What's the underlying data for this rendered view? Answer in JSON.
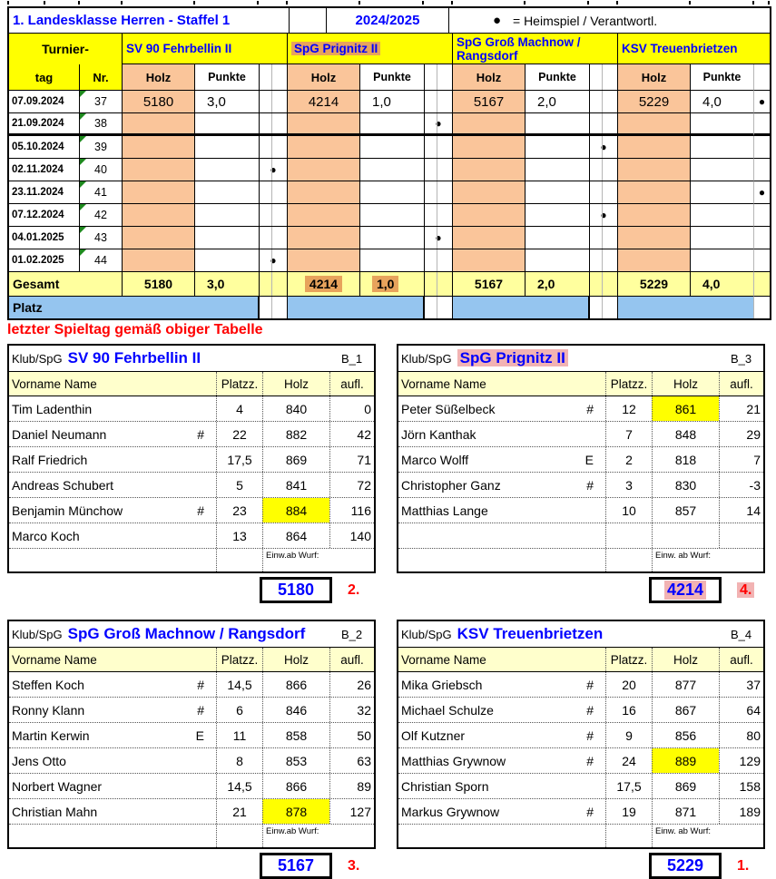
{
  "colors": {
    "header_yellow": "#FFFF00",
    "holz_peach": "#FAC59A",
    "total_row_yellow": "#FFFF9E",
    "platz_blue": "#95C5EF",
    "orange_highlight": "#E7A35C",
    "pink_highlight": "#F2B3B3",
    "subheader_cream": "#FFFFCC",
    "text_blue": "#0000FF",
    "text_red": "#FF0000",
    "comment_triangle_green": "#1E8A1E",
    "cell_yellow_highlight": "#FFFF00"
  },
  "header": {
    "title": "1. Landesklasse Herren - Staffel 1",
    "season": "2024/2025"
  },
  "legend": {
    "symbol": "●",
    "text": "= Heimspiel / Verantwortl."
  },
  "standings": {
    "corner_line1": "Turnier-",
    "corner_tag": "tag",
    "corner_nr": "Nr.",
    "col_holz": "Holz",
    "col_punkte": "Punkte",
    "teams": [
      {
        "name": "SV 90 Fehrbellin II",
        "highlight": null
      },
      {
        "name": "SpG Prignitz II",
        "highlight": "orange"
      },
      {
        "name": "SpG Groß Machnow / Rangsdorf",
        "highlight": null
      },
      {
        "name": "KSV Treuenbrietzen",
        "highlight": null
      }
    ],
    "rows": [
      {
        "date": "07.09.2024",
        "nr": "37",
        "dot": "end",
        "thick": false,
        "values": [
          [
            "5180",
            "3,0"
          ],
          [
            "4214",
            "1,0"
          ],
          [
            "5167",
            "2,0"
          ],
          [
            "5229",
            "4,0"
          ]
        ]
      },
      {
        "date": "21.09.2024",
        "nr": "38",
        "dot": "sp2",
        "thick": true,
        "values": null
      },
      {
        "date": "05.10.2024",
        "nr": "39",
        "dot": "sp3",
        "thick": false,
        "values": null
      },
      {
        "date": "02.11.2024",
        "nr": "40",
        "dot": "sp1",
        "thick": false,
        "values": null
      },
      {
        "date": "23.11.2024",
        "nr": "41",
        "dot": "end",
        "thick": false,
        "values": null
      },
      {
        "date": "07.12.2024",
        "nr": "42",
        "dot": "sp3",
        "thick": false,
        "values": null
      },
      {
        "date": "04.01.2025",
        "nr": "43",
        "dot": "sp2",
        "thick": false,
        "values": null
      },
      {
        "date": "01.02.2025",
        "nr": "44",
        "dot": "sp1",
        "thick": false,
        "values": null
      }
    ],
    "gesamt": {
      "label": "Gesamt",
      "values": [
        [
          "5180",
          "3,0",
          false
        ],
        [
          "4214",
          "1,0",
          true
        ],
        [
          "5167",
          "2,0",
          false
        ],
        [
          "5229",
          "4,0",
          false
        ]
      ]
    },
    "platz": {
      "label": "Platz"
    }
  },
  "note": {
    "text": "letzter Spieltag gemäß obiger Tabelle"
  },
  "rosters": {
    "klub_label": "Klub/SpG",
    "headers": {
      "name": "Vorname Name",
      "platzz": "Platzz.",
      "holz": "Holz",
      "aufl": "aufl."
    },
    "tables": [
      {
        "team": "SV 90 Fehrbellin II",
        "code": "B_1",
        "highlight": null,
        "einwurf": "Einw.ab Wurf:",
        "total": "5180",
        "rank": "2.",
        "players": [
          [
            "Tim Ladenthin",
            "",
            "4",
            "840",
            "0",
            false
          ],
          [
            "Daniel Neumann",
            "#",
            "22",
            "882",
            "42",
            false
          ],
          [
            "Ralf Friedrich",
            "",
            "17,5",
            "869",
            "71",
            false
          ],
          [
            "Andreas Schubert",
            "",
            "5",
            "841",
            "72",
            false
          ],
          [
            "Benjamin Münchow",
            "#",
            "23",
            "884",
            "116",
            true
          ],
          [
            "Marco Koch",
            "",
            "13",
            "864",
            "140",
            false
          ]
        ]
      },
      {
        "team": "SpG Prignitz II",
        "code": "B_3",
        "highlight": "pink",
        "einwurf": "Einw. ab Wurf:",
        "total": "4214",
        "rank": "4.",
        "players": [
          [
            "Peter Süßelbeck",
            "#",
            "12",
            "861",
            "21",
            true
          ],
          [
            "Jörn Kanthak",
            "",
            "7",
            "848",
            "29",
            false
          ],
          [
            "Marco Wolff",
            "E",
            "2",
            "818",
            "7",
            false
          ],
          [
            "Christopher Ganz",
            "#",
            "3",
            "830",
            "-3",
            false
          ],
          [
            "Matthias Lange",
            "",
            "10",
            "857",
            "14",
            false
          ],
          [
            "",
            "",
            "",
            "",
            "",
            false
          ]
        ]
      },
      {
        "team": "SpG Groß Machnow / Rangsdorf",
        "code": "B_2",
        "highlight": null,
        "einwurf": "Einw.ab Wurf:",
        "total": "5167",
        "rank": "3.",
        "players": [
          [
            "Steffen Koch",
            "#",
            "14,5",
            "866",
            "26",
            false
          ],
          [
            "Ronny Klann",
            "#",
            "6",
            "846",
            "32",
            false
          ],
          [
            "Martin Kerwin",
            "E",
            "11",
            "858",
            "50",
            false
          ],
          [
            "Jens Otto",
            "",
            "8",
            "853",
            "63",
            false
          ],
          [
            "Norbert Wagner",
            "",
            "14,5",
            "866",
            "89",
            false
          ],
          [
            "Christian Mahn",
            "",
            "21",
            "878",
            "127",
            true
          ]
        ]
      },
      {
        "team": "KSV Treuenbrietzen",
        "code": "B_4",
        "highlight": null,
        "einwurf": "Einw. ab Wurf:",
        "total": "5229",
        "rank": "1.",
        "players": [
          [
            "Mika Griebsch",
            "#",
            "20",
            "877",
            "37",
            false
          ],
          [
            "Michael Schulze",
            "#",
            "16",
            "867",
            "64",
            false
          ],
          [
            "Olf Kutzner",
            "#",
            "9",
            "856",
            "80",
            false
          ],
          [
            "Matthias Grywnow",
            "#",
            "24",
            "889",
            "129",
            true
          ],
          [
            "Christian Sporn",
            "",
            "17,5",
            "869",
            "158",
            false
          ],
          [
            "Markus Grywnow",
            "#",
            "19",
            "871",
            "189",
            false
          ]
        ]
      }
    ]
  }
}
